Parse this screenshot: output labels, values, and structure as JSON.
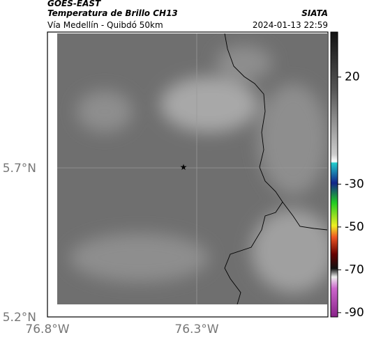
{
  "header": {
    "title": "GOES-EAST",
    "subtitle": "Temperatura de Brillo CH13",
    "route": "Vía Medellín - Quibdó 50km",
    "source": "SIATA",
    "timestamp": "2024-01-13 22:59"
  },
  "map": {
    "lat_ticks": [
      "5.7°N",
      "5.2°N"
    ],
    "lon_ticks": [
      "76.8°W",
      "76.3°W"
    ]
  },
  "colorbar": {
    "lim": [
      41,
      -92
    ],
    "ticks": [
      20,
      -30,
      -50,
      -70,
      -90
    ]
  }
}
